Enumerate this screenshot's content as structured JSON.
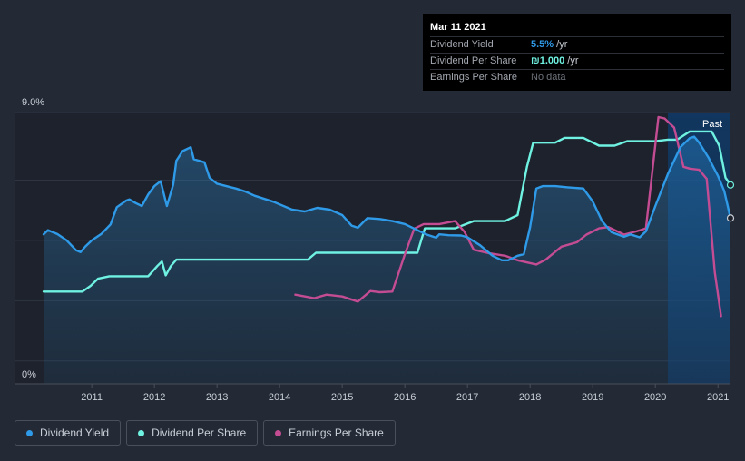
{
  "tooltip": {
    "date": "Mar 11 2021",
    "rows": [
      {
        "label": "Dividend Yield",
        "value": "5.5%",
        "unit": " /yr"
      },
      {
        "label": "Dividend Per Share",
        "value": "₪1.000",
        "unit": " /yr"
      },
      {
        "label": "Earnings Per Share",
        "value": "No data",
        "unit": ""
      }
    ]
  },
  "colors": {
    "dividend_yield": "#2f9ae8",
    "dividend_per_share": "#6ff2e1",
    "earnings_per_share": "#c34c93",
    "background": "#232935"
  },
  "chart_data": {
    "type": "line",
    "title": "",
    "xlabel": "",
    "ylabel": "",
    "ylim": [
      0,
      9.0
    ],
    "xlim": [
      2010.23,
      2021.2
    ],
    "y_tick_labels": [
      "9.0%",
      "0%"
    ],
    "x_tick_labels": [
      "2011",
      "2012",
      "2013",
      "2014",
      "2015",
      "2016",
      "2017",
      "2018",
      "2019",
      "2020",
      "2021"
    ],
    "x_ticks": [
      2011,
      2012,
      2013,
      2014,
      2015,
      2016,
      2017,
      2018,
      2019,
      2020,
      2021
    ],
    "past_label": "Past",
    "past_region_start": 2020.2,
    "series": [
      {
        "name": "Dividend Yield",
        "key": "dividend_yield",
        "area": true,
        "points": [
          [
            2010.23,
            4.96
          ],
          [
            2010.3,
            5.1
          ],
          [
            2010.45,
            4.97
          ],
          [
            2010.6,
            4.76
          ],
          [
            2010.75,
            4.43
          ],
          [
            2010.82,
            4.37
          ],
          [
            2010.9,
            4.56
          ],
          [
            2011.0,
            4.76
          ],
          [
            2011.15,
            4.97
          ],
          [
            2011.3,
            5.29
          ],
          [
            2011.4,
            5.86
          ],
          [
            2011.55,
            6.08
          ],
          [
            2011.6,
            6.12
          ],
          [
            2011.7,
            6.0
          ],
          [
            2011.8,
            5.9
          ],
          [
            2011.9,
            6.28
          ],
          [
            2012.0,
            6.56
          ],
          [
            2012.1,
            6.72
          ],
          [
            2012.2,
            5.9
          ],
          [
            2012.3,
            6.6
          ],
          [
            2012.35,
            7.4
          ],
          [
            2012.45,
            7.72
          ],
          [
            2012.58,
            7.85
          ],
          [
            2012.63,
            7.45
          ],
          [
            2012.8,
            7.35
          ],
          [
            2012.88,
            6.84
          ],
          [
            2013.0,
            6.64
          ],
          [
            2013.3,
            6.48
          ],
          [
            2013.45,
            6.38
          ],
          [
            2013.6,
            6.24
          ],
          [
            2013.9,
            6.04
          ],
          [
            2014.2,
            5.78
          ],
          [
            2014.4,
            5.72
          ],
          [
            2014.6,
            5.84
          ],
          [
            2014.8,
            5.78
          ],
          [
            2015.0,
            5.6
          ],
          [
            2015.15,
            5.25
          ],
          [
            2015.25,
            5.18
          ],
          [
            2015.4,
            5.5
          ],
          [
            2015.6,
            5.47
          ],
          [
            2015.8,
            5.4
          ],
          [
            2016.0,
            5.3
          ],
          [
            2016.2,
            5.1
          ],
          [
            2016.35,
            4.95
          ],
          [
            2016.5,
            4.85
          ],
          [
            2016.55,
            4.96
          ],
          [
            2016.7,
            4.93
          ],
          [
            2016.9,
            4.92
          ],
          [
            2017.0,
            4.86
          ],
          [
            2017.2,
            4.6
          ],
          [
            2017.4,
            4.25
          ],
          [
            2017.55,
            4.1
          ],
          [
            2017.65,
            4.1
          ],
          [
            2017.8,
            4.25
          ],
          [
            2017.9,
            4.3
          ],
          [
            2018.0,
            5.2
          ],
          [
            2018.1,
            6.48
          ],
          [
            2018.2,
            6.56
          ],
          [
            2018.4,
            6.56
          ],
          [
            2018.6,
            6.52
          ],
          [
            2018.85,
            6.48
          ],
          [
            2019.0,
            6.05
          ],
          [
            2019.15,
            5.4
          ],
          [
            2019.3,
            5.03
          ],
          [
            2019.5,
            4.88
          ],
          [
            2019.6,
            4.96
          ],
          [
            2019.75,
            4.86
          ],
          [
            2019.85,
            5.06
          ],
          [
            2020.0,
            5.9
          ],
          [
            2020.2,
            6.96
          ],
          [
            2020.4,
            7.85
          ],
          [
            2020.55,
            8.15
          ],
          [
            2020.62,
            8.2
          ],
          [
            2020.7,
            8.0
          ],
          [
            2020.85,
            7.5
          ],
          [
            2021.0,
            6.9
          ],
          [
            2021.1,
            6.4
          ],
          [
            2021.2,
            5.5
          ]
        ]
      },
      {
        "name": "Dividend Per Share",
        "key": "dividend_per_share",
        "area": false,
        "points": [
          [
            2010.23,
            3.06
          ],
          [
            2010.85,
            3.06
          ],
          [
            2010.98,
            3.25
          ],
          [
            2011.1,
            3.49
          ],
          [
            2011.28,
            3.57
          ],
          [
            2011.9,
            3.57
          ],
          [
            2012.05,
            3.92
          ],
          [
            2012.12,
            4.06
          ],
          [
            2012.18,
            3.6
          ],
          [
            2012.26,
            3.9
          ],
          [
            2012.35,
            4.12
          ],
          [
            2014.45,
            4.12
          ],
          [
            2014.58,
            4.35
          ],
          [
            2016.2,
            4.35
          ],
          [
            2016.32,
            5.16
          ],
          [
            2016.8,
            5.16
          ],
          [
            2017.1,
            5.4
          ],
          [
            2017.6,
            5.4
          ],
          [
            2017.8,
            5.6
          ],
          [
            2017.95,
            7.2
          ],
          [
            2018.05,
            8.0
          ],
          [
            2018.4,
            8.0
          ],
          [
            2018.55,
            8.16
          ],
          [
            2018.85,
            8.16
          ],
          [
            2019.1,
            7.9
          ],
          [
            2019.35,
            7.9
          ],
          [
            2019.55,
            8.05
          ],
          [
            2019.8,
            8.05
          ],
          [
            2020.0,
            8.05
          ],
          [
            2020.2,
            8.1
          ],
          [
            2020.35,
            8.1
          ],
          [
            2020.55,
            8.37
          ],
          [
            2020.9,
            8.37
          ],
          [
            2021.02,
            7.9
          ],
          [
            2021.12,
            6.84
          ],
          [
            2021.2,
            6.6
          ]
        ]
      },
      {
        "name": "Earnings Per Share",
        "key": "earnings_per_share",
        "area": false,
        "points": [
          [
            2014.25,
            2.96
          ],
          [
            2014.55,
            2.84
          ],
          [
            2014.75,
            2.96
          ],
          [
            2015.0,
            2.9
          ],
          [
            2015.25,
            2.73
          ],
          [
            2015.45,
            3.08
          ],
          [
            2015.6,
            3.04
          ],
          [
            2015.8,
            3.06
          ],
          [
            2016.0,
            4.3
          ],
          [
            2016.15,
            5.15
          ],
          [
            2016.3,
            5.3
          ],
          [
            2016.55,
            5.3
          ],
          [
            2016.8,
            5.4
          ],
          [
            2016.95,
            5.05
          ],
          [
            2017.1,
            4.45
          ],
          [
            2017.35,
            4.33
          ],
          [
            2017.6,
            4.25
          ],
          [
            2017.8,
            4.1
          ],
          [
            2018.1,
            3.96
          ],
          [
            2018.25,
            4.12
          ],
          [
            2018.5,
            4.55
          ],
          [
            2018.75,
            4.7
          ],
          [
            2018.9,
            4.95
          ],
          [
            2019.1,
            5.16
          ],
          [
            2019.25,
            5.2
          ],
          [
            2019.5,
            4.95
          ],
          [
            2019.7,
            5.06
          ],
          [
            2019.85,
            5.16
          ],
          [
            2019.95,
            7.0
          ],
          [
            2020.05,
            8.85
          ],
          [
            2020.15,
            8.8
          ],
          [
            2020.3,
            8.5
          ],
          [
            2020.45,
            7.2
          ],
          [
            2020.55,
            7.14
          ],
          [
            2020.7,
            7.1
          ],
          [
            2020.82,
            6.8
          ],
          [
            2020.95,
            3.7
          ],
          [
            2021.05,
            2.25
          ]
        ]
      }
    ],
    "legend": [
      "Dividend Yield",
      "Dividend Per Share",
      "Earnings Per Share"
    ]
  }
}
